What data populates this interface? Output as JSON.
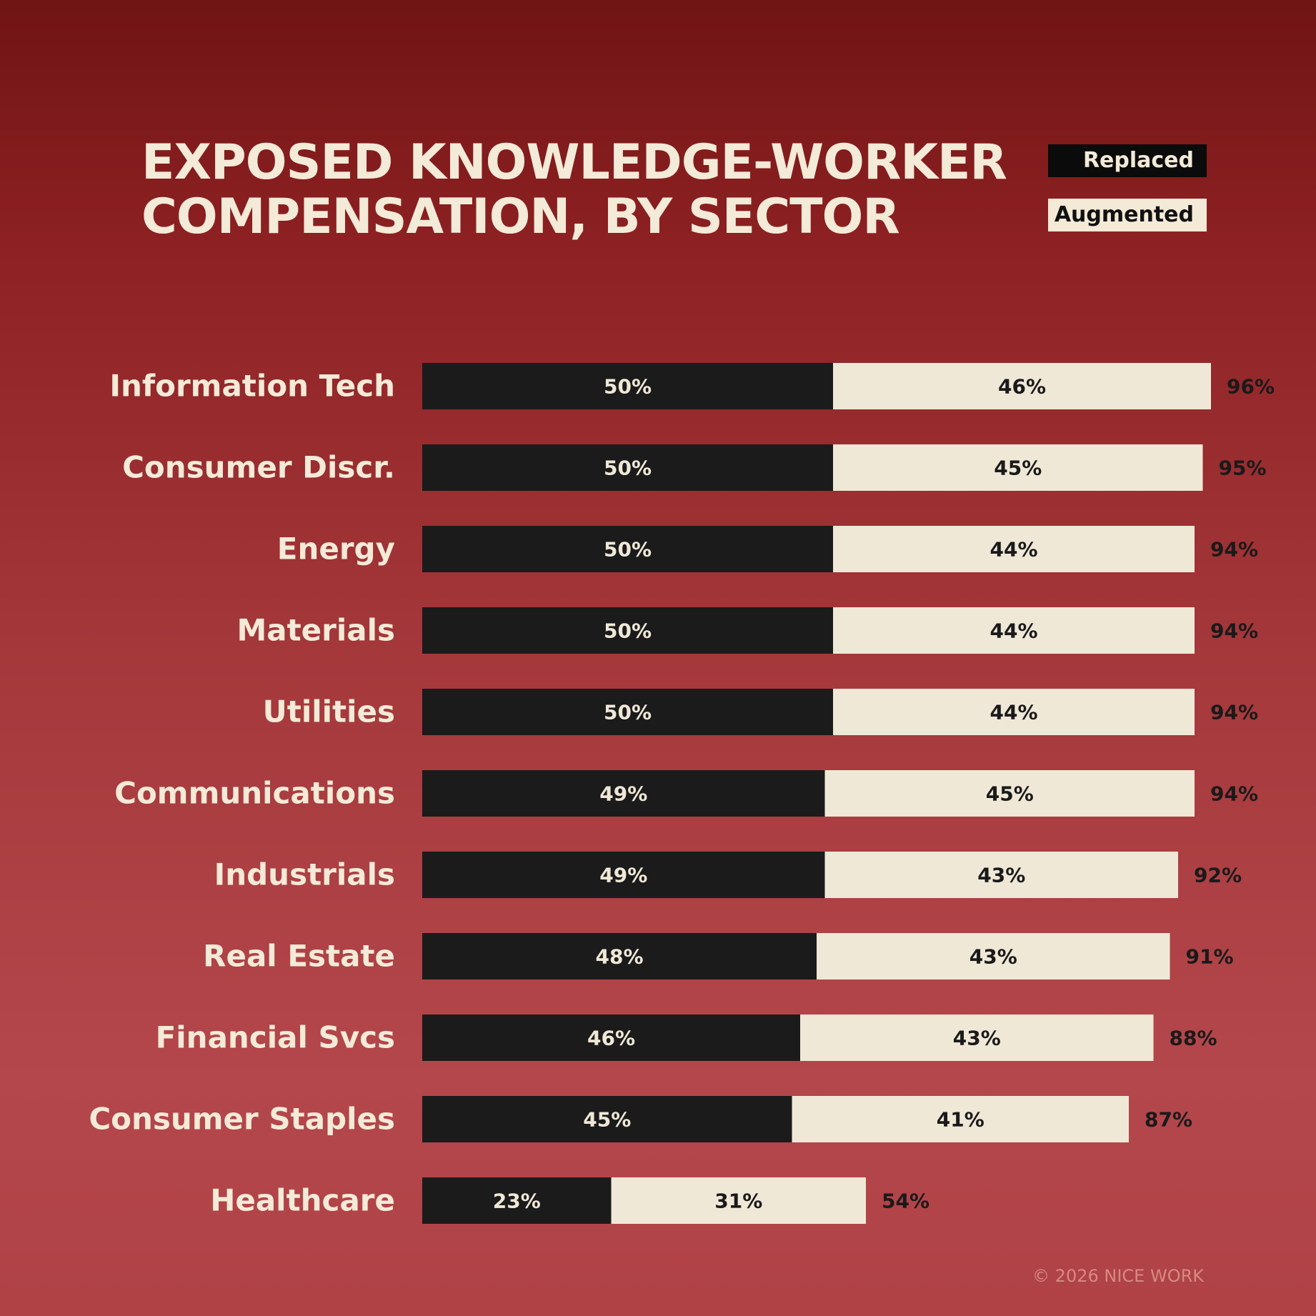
{
  "title_line1": "EXPOSED KNOWLEDGE-WORKER",
  "title_line2": "COMPENSATION, BY SECTOR",
  "legend": {
    "replaced": "Replaced",
    "augmented": "Augmented"
  },
  "footer": "© 2026 NICE WORK",
  "colors": {
    "replaced": "#1b1b1b",
    "augmented": "#f0e8d7",
    "label": "#f3ead7",
    "total": "#1a1a1a",
    "background": "#a4383b"
  },
  "chart_data": {
    "type": "bar",
    "orientation": "horizontal",
    "stacked": true,
    "categories": [
      "Information Tech",
      "Consumer Discr.",
      "Energy",
      "Materials",
      "Utilities",
      "Communications",
      "Industrials",
      "Real Estate",
      "Financial Svcs",
      "Consumer Staples",
      "Healthcare"
    ],
    "series": [
      {
        "name": "Replaced",
        "values": [
          50,
          50,
          50,
          50,
          50,
          49,
          49,
          48,
          46,
          45,
          23
        ]
      },
      {
        "name": "Augmented",
        "values": [
          46,
          45,
          44,
          44,
          44,
          45,
          43,
          43,
          43,
          41,
          31
        ]
      }
    ],
    "totals": [
      96,
      95,
      94,
      94,
      94,
      94,
      92,
      91,
      88,
      87,
      54
    ],
    "value_suffix": "%",
    "xlim": [
      0,
      100
    ],
    "legend_position": "top-right",
    "grid": false
  }
}
